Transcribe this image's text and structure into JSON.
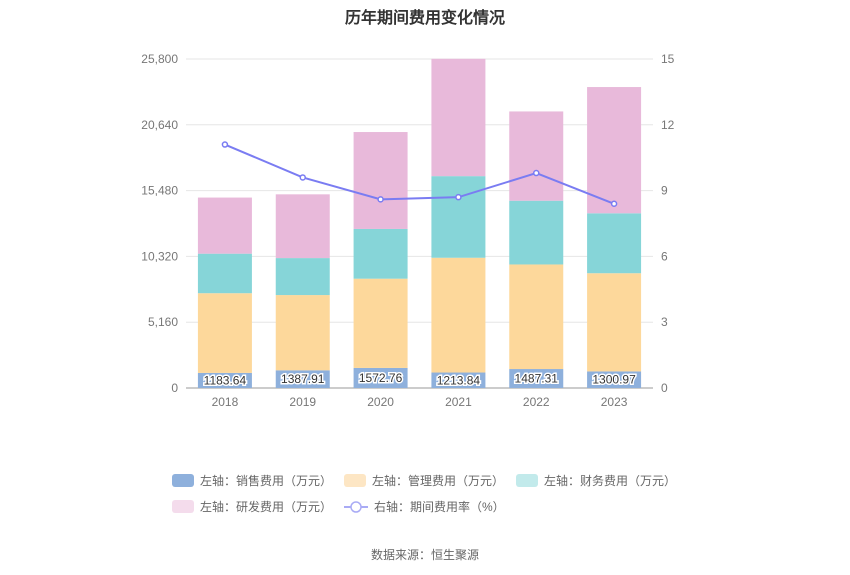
{
  "chart_data": {
    "type": "bar",
    "title": "历年期间费用变化情况",
    "categories": [
      "2018",
      "2019",
      "2020",
      "2021",
      "2022",
      "2023"
    ],
    "stacked": true,
    "y_left": {
      "ticks": [
        "0",
        "5,160",
        "10,320",
        "15,480",
        "20,640",
        "25,800"
      ],
      "min": 0,
      "max": 25800
    },
    "y_right": {
      "ticks": [
        "0",
        "3",
        "6",
        "9",
        "12",
        "15"
      ],
      "min": 0,
      "max": 15
    },
    "series": [
      {
        "name": "左轴：销售费用（万元）",
        "axis": "left",
        "type": "bar",
        "color": "#8eb0dc",
        "values": [
          1183.64,
          1387.91,
          1572.76,
          1213.84,
          1487.31,
          1300.97
        ],
        "labels": [
          "1183.64",
          "1387.91",
          "1572.76",
          "1213.84",
          "1487.31",
          "1300.97"
        ]
      },
      {
        "name": "左轴：管理费用（万元）",
        "axis": "left",
        "type": "bar",
        "color": "#fdd89b",
        "values": [
          6250,
          5900,
          7000,
          9000,
          8200,
          7700
        ]
      },
      {
        "name": "左轴：财务费用（万元）",
        "axis": "left",
        "type": "bar",
        "color": "#86d5d8",
        "values": [
          3100,
          2900,
          3900,
          6400,
          5000,
          4700
        ]
      },
      {
        "name": "左轴：研发费用（万元）",
        "axis": "left",
        "type": "bar",
        "color": "#e8b9da",
        "values": [
          4400,
          5000,
          7600,
          9200,
          7000,
          9900
        ]
      },
      {
        "name": "右轴：期间费用率（%）",
        "axis": "right",
        "type": "line",
        "color": "#7a7cf2",
        "values": [
          11.1,
          9.6,
          8.6,
          8.7,
          9.8,
          8.4
        ]
      }
    ],
    "grid": true,
    "legend_position": "bottom"
  },
  "source": "数据来源：恒生聚源"
}
